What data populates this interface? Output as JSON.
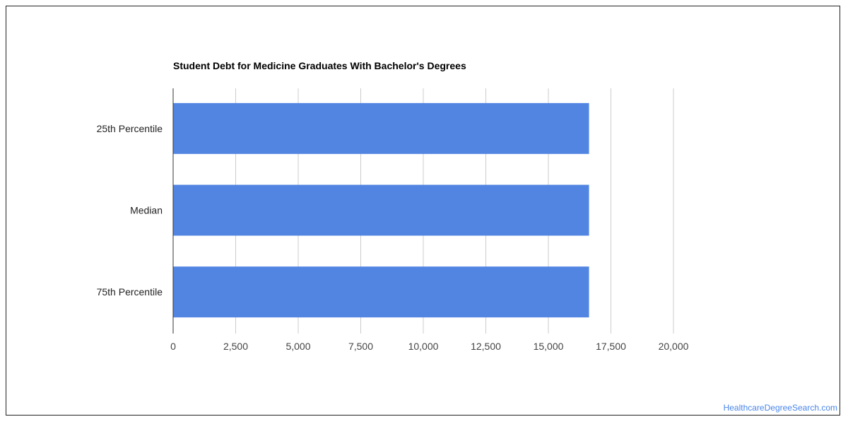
{
  "chart_data": {
    "type": "bar",
    "orientation": "horizontal",
    "title": "Student Debt for Medicine Graduates With Bachelor's Degrees",
    "categories": [
      "25th Percentile",
      "Median",
      "75th Percentile"
    ],
    "values": [
      16625,
      16625,
      16625
    ],
    "xlim": [
      0,
      20000
    ],
    "xticks": [
      0,
      2500,
      5000,
      7500,
      10000,
      12500,
      15000,
      17500,
      20000
    ],
    "xtick_labels": [
      "0",
      "2,500",
      "5,000",
      "7,500",
      "10,000",
      "12,500",
      "15,000",
      "17,500",
      "20,000"
    ],
    "grid": true,
    "bar_color": "#5285e2",
    "grid_color": "#cccccc"
  },
  "credit": "HealthcareDegreeSearch.com"
}
